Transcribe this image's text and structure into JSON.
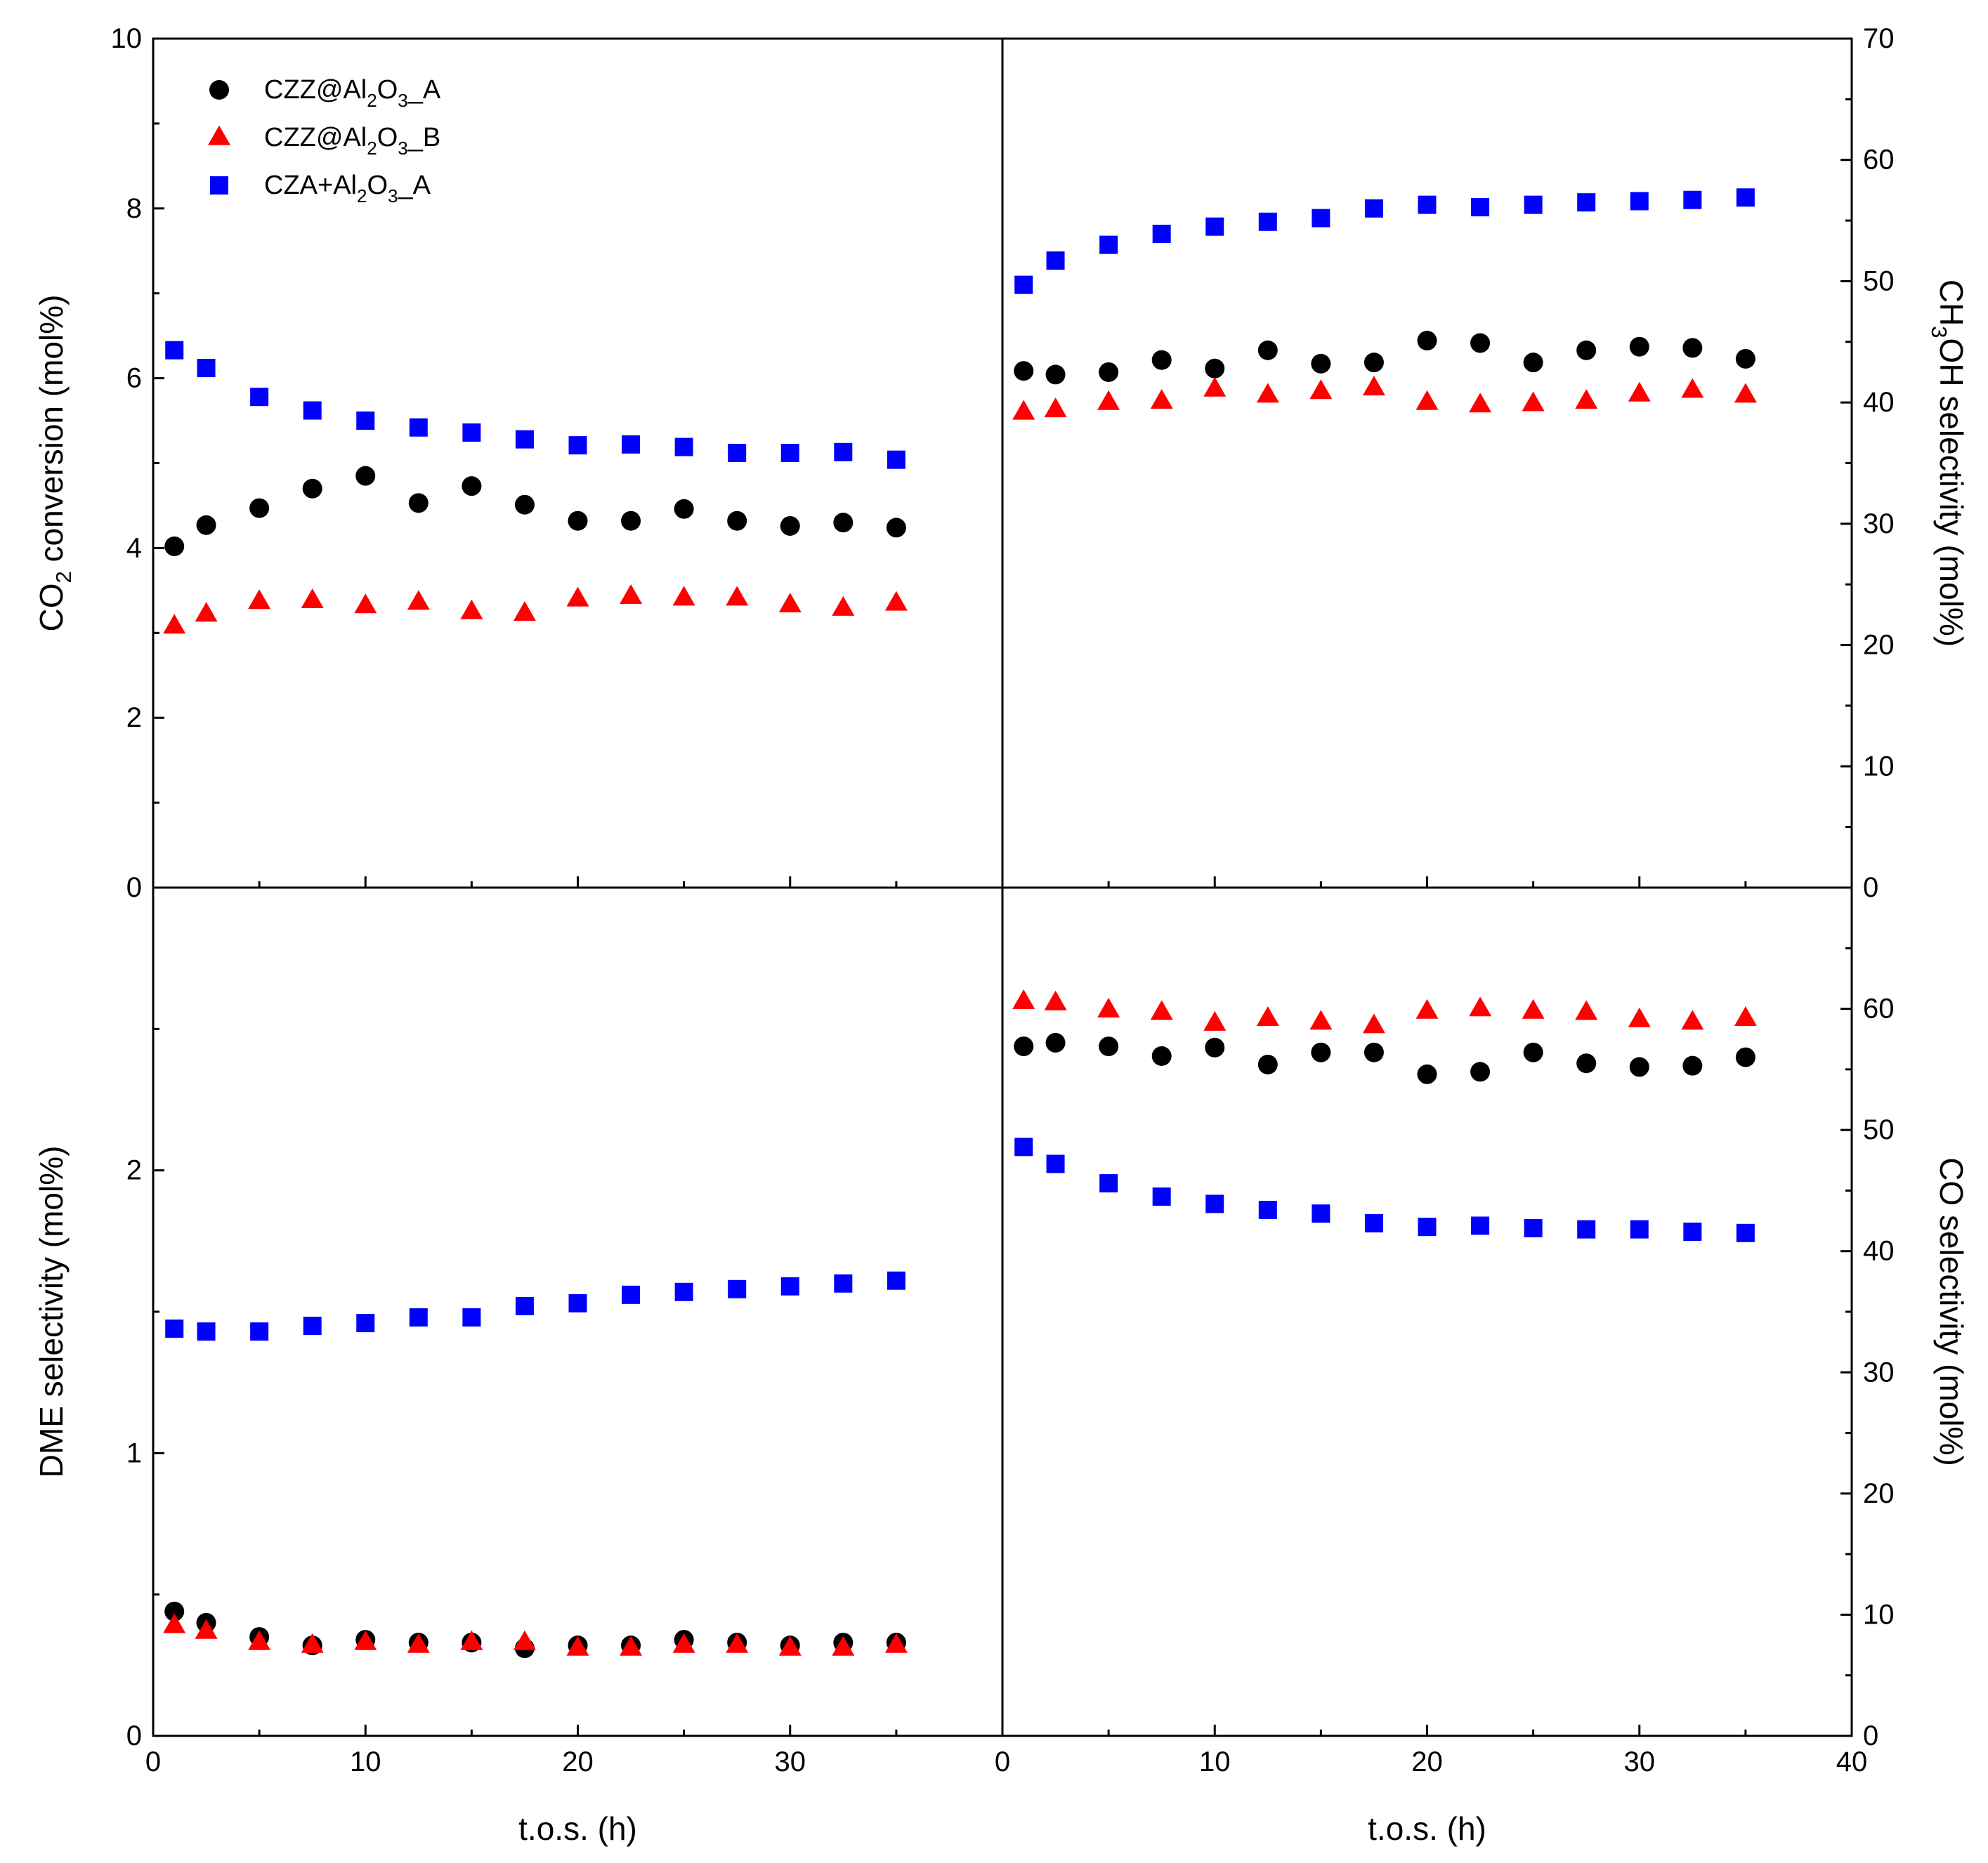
{
  "chart_data": [
    {
      "panel": "top-left",
      "type": "scatter",
      "xlabel": "",
      "ylabel": "CO2 conversion (mol%)",
      "ylabel_parts": [
        [
          "CO",
          "normal"
        ],
        [
          "2",
          "sub"
        ],
        [
          " conversion (mol%)",
          "normal"
        ]
      ],
      "xlim": [
        0,
        40
      ],
      "ylim": [
        0,
        10
      ],
      "y_axis_side": "left",
      "yticks": [
        0,
        2,
        4,
        6,
        8,
        10
      ],
      "xticks": [
        0,
        10,
        20,
        30
      ],
      "show_x_tick_labels": false,
      "grid": false,
      "x": [
        1,
        2.5,
        5,
        7.5,
        10,
        12.5,
        15,
        17.5,
        20,
        22.5,
        25,
        27.5,
        30,
        32.5,
        35
      ],
      "series": [
        {
          "key": "A",
          "values": [
            4.02,
            4.27,
            4.47,
            4.7,
            4.85,
            4.53,
            4.73,
            4.51,
            4.32,
            4.32,
            4.46,
            4.32,
            4.26,
            4.3,
            4.24
          ]
        },
        {
          "key": "B",
          "values": [
            3.08,
            3.22,
            3.37,
            3.38,
            3.32,
            3.36,
            3.25,
            3.23,
            3.4,
            3.43,
            3.41,
            3.41,
            3.33,
            3.29,
            3.35
          ]
        },
        {
          "key": "C",
          "values": [
            6.33,
            6.12,
            5.78,
            5.62,
            5.5,
            5.42,
            5.36,
            5.28,
            5.21,
            5.22,
            5.19,
            5.12,
            5.12,
            5.13,
            5.04
          ]
        }
      ]
    },
    {
      "panel": "top-right",
      "type": "scatter",
      "xlabel": "",
      "ylabel": "CH3OH selectivity (mol%)",
      "ylabel_parts": [
        [
          "CH",
          "normal"
        ],
        [
          "3",
          "sub"
        ],
        [
          "OH selectivity (mol%)",
          "normal"
        ]
      ],
      "xlim": [
        0,
        40
      ],
      "ylim": [
        0,
        70
      ],
      "y_axis_side": "right",
      "yticks": [
        0,
        10,
        20,
        30,
        40,
        50,
        60,
        70
      ],
      "xticks": [
        0,
        10,
        20,
        30,
        40
      ],
      "show_x_tick_labels": false,
      "grid": false,
      "x": [
        1,
        2.5,
        5,
        7.5,
        10,
        12.5,
        15,
        17.5,
        20,
        22.5,
        25,
        27.5,
        30,
        32.5,
        35
      ],
      "series": [
        {
          "key": "A",
          "values": [
            42.6,
            42.3,
            42.5,
            43.5,
            42.8,
            44.3,
            43.2,
            43.3,
            45.1,
            44.9,
            43.3,
            44.3,
            44.6,
            44.5,
            43.6
          ]
        },
        {
          "key": "B",
          "values": [
            39.2,
            39.4,
            40.0,
            40.1,
            41.1,
            40.6,
            40.9,
            41.2,
            40.0,
            39.8,
            39.9,
            40.1,
            40.7,
            41.0,
            40.6
          ]
        },
        {
          "key": "C",
          "values": [
            49.7,
            51.7,
            53.0,
            53.9,
            54.5,
            54.9,
            55.2,
            56.0,
            56.3,
            56.1,
            56.3,
            56.5,
            56.6,
            56.7,
            56.9
          ]
        }
      ]
    },
    {
      "panel": "bottom-left",
      "type": "scatter",
      "xlabel": "t.o.s. (h)",
      "ylabel": "DME selectivity (mol%)",
      "ylabel_parts": [
        [
          "DME selectivity (mol%)",
          "normal"
        ]
      ],
      "xlim": [
        0,
        40
      ],
      "ylim": [
        0,
        3
      ],
      "y_axis_side": "left",
      "yticks": [
        0,
        1,
        2
      ],
      "xticks": [
        0,
        10,
        20,
        30
      ],
      "show_x_tick_labels": true,
      "grid": false,
      "x": [
        1,
        2.5,
        5,
        7.5,
        10,
        12.5,
        15,
        17.5,
        20,
        22.5,
        25,
        27.5,
        30,
        32.5,
        35
      ],
      "series": [
        {
          "key": "A",
          "values": [
            0.44,
            0.4,
            0.35,
            0.32,
            0.34,
            0.33,
            0.33,
            0.31,
            0.32,
            0.32,
            0.34,
            0.33,
            0.32,
            0.33,
            0.33
          ]
        },
        {
          "key": "B",
          "values": [
            0.39,
            0.37,
            0.33,
            0.32,
            0.33,
            0.32,
            0.33,
            0.33,
            0.31,
            0.31,
            0.32,
            0.32,
            0.31,
            0.31,
            0.32
          ]
        },
        {
          "key": "C",
          "values": [
            1.44,
            1.43,
            1.43,
            1.45,
            1.46,
            1.48,
            1.48,
            1.52,
            1.53,
            1.56,
            1.57,
            1.58,
            1.59,
            1.6,
            1.61
          ]
        }
      ]
    },
    {
      "panel": "bottom-right",
      "type": "scatter",
      "xlabel": "t.o.s. (h)",
      "ylabel": "CO selectivity (mol%)",
      "ylabel_parts": [
        [
          "CO selectivity (mol%)",
          "normal"
        ]
      ],
      "xlim": [
        0,
        40
      ],
      "ylim": [
        0,
        70
      ],
      "y_axis_side": "right",
      "yticks": [
        0,
        10,
        20,
        30,
        40,
        50,
        60
      ],
      "xticks": [
        0,
        10,
        20,
        30,
        40
      ],
      "show_x_tick_labels": true,
      "grid": false,
      "x": [
        1,
        2.5,
        5,
        7.5,
        10,
        12.5,
        15,
        17.5,
        20,
        22.5,
        25,
        27.5,
        30,
        32.5,
        35
      ],
      "series": [
        {
          "key": "A",
          "values": [
            56.9,
            57.2,
            56.9,
            56.1,
            56.8,
            55.4,
            56.4,
            56.4,
            54.6,
            54.8,
            56.4,
            55.5,
            55.2,
            55.3,
            56.0
          ]
        },
        {
          "key": "B",
          "values": [
            60.6,
            60.5,
            59.9,
            59.7,
            58.8,
            59.2,
            58.9,
            58.6,
            59.8,
            60.0,
            59.8,
            59.7,
            59.1,
            58.9,
            59.2
          ]
        },
        {
          "key": "C",
          "values": [
            48.6,
            47.2,
            45.6,
            44.5,
            43.9,
            43.4,
            43.1,
            42.3,
            42.0,
            42.1,
            41.9,
            41.8,
            41.8,
            41.6,
            41.5
          ]
        }
      ]
    }
  ],
  "legend": {
    "placement": "top-left",
    "entries": [
      {
        "key": "A",
        "label": "CZZ@Al2O3_A",
        "parts": [
          [
            "CZZ@Al",
            "normal"
          ],
          [
            "2",
            "sub"
          ],
          [
            "O",
            "normal"
          ],
          [
            "3",
            "sub"
          ],
          [
            "_A",
            "normal"
          ]
        ],
        "marker": "circle",
        "color": "#000000"
      },
      {
        "key": "B",
        "label": "CZZ@Al2O3_B",
        "parts": [
          [
            "CZZ@Al",
            "normal"
          ],
          [
            "2",
            "sub"
          ],
          [
            "O",
            "normal"
          ],
          [
            "3",
            "sub"
          ],
          [
            "_B",
            "normal"
          ]
        ],
        "marker": "triangle",
        "color": "#ff0000"
      },
      {
        "key": "C",
        "label": "CZA+Al2O3_A",
        "parts": [
          [
            "CZA+Al",
            "normal"
          ],
          [
            "2",
            "sub"
          ],
          [
            "O",
            "normal"
          ],
          [
            "3",
            "sub"
          ],
          [
            "_A",
            "normal"
          ]
        ],
        "marker": "square",
        "color": "#0000ff"
      }
    ]
  }
}
